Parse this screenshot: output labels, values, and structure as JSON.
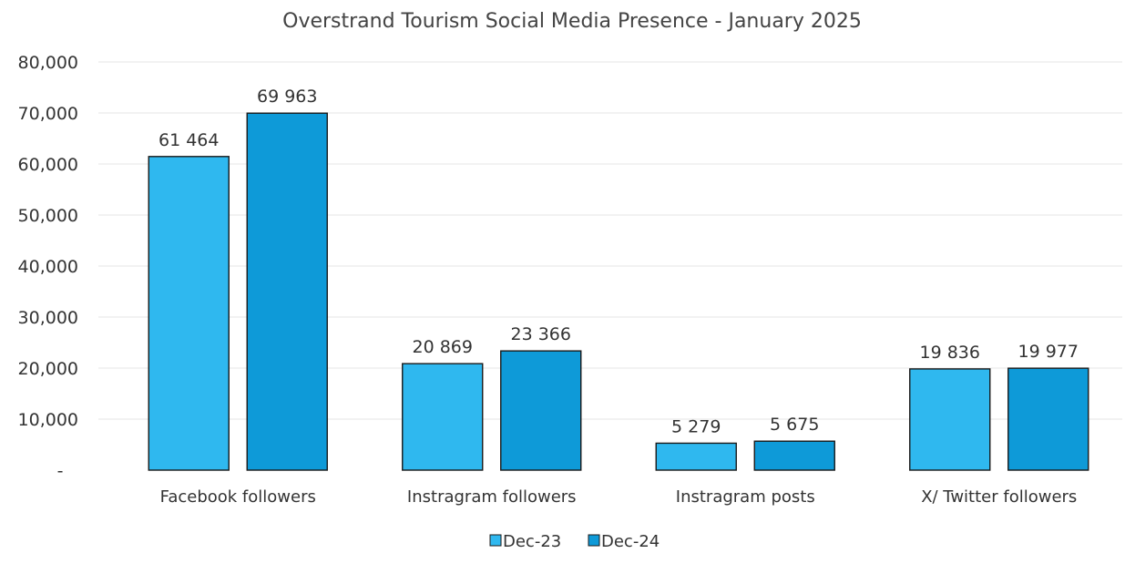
{
  "chart_data": {
    "type": "bar",
    "title": "Overstrand Tourism Social Media Presence - January 2025",
    "xlabel": "",
    "ylabel": "",
    "categories": [
      "Facebook followers",
      "Instragram followers",
      "Instragram posts",
      "X/ Twitter followers"
    ],
    "series": [
      {
        "name": "Dec-23",
        "color": "#2fb8ef",
        "values": [
          61464,
          20869,
          5279,
          19836
        ],
        "labels": [
          "61 464",
          "20 869",
          "5 279",
          "19 836"
        ]
      },
      {
        "name": "Dec-24",
        "color": "#0e9ad8",
        "values": [
          69963,
          23366,
          5675,
          19977
        ],
        "labels": [
          "69 963",
          "23 366",
          "5 675",
          "19 977"
        ]
      }
    ],
    "ylim": [
      0,
      80000
    ],
    "y_ticks": [
      {
        "value": 0,
        "label": "-"
      },
      {
        "value": 10000,
        "label": "10,000"
      },
      {
        "value": 20000,
        "label": "20,000"
      },
      {
        "value": 30000,
        "label": "30,000"
      },
      {
        "value": 40000,
        "label": "40,000"
      },
      {
        "value": 50000,
        "label": "50,000"
      },
      {
        "value": 60000,
        "label": "60,000"
      },
      {
        "value": 70000,
        "label": "70,000"
      },
      {
        "value": 80000,
        "label": "80,000"
      }
    ],
    "grid": true,
    "legend_position": "bottom"
  }
}
